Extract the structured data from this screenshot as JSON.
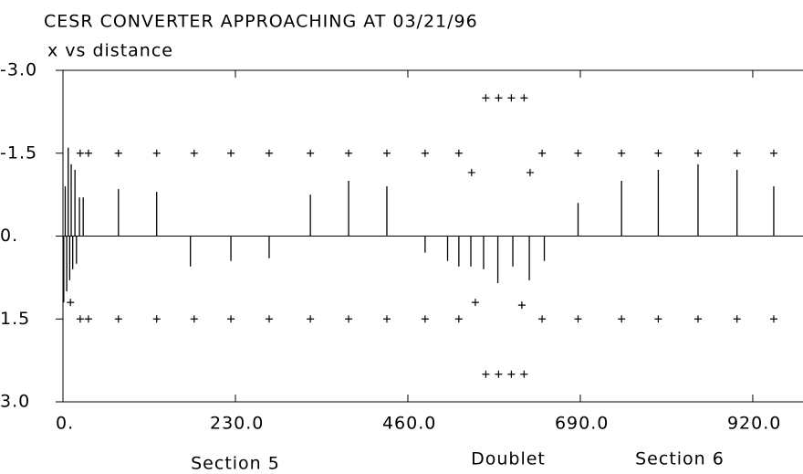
{
  "chart_data": {
    "type": "bar",
    "title": "CESR CONVERTER APPROACHING AT 03/21/96",
    "subtitle": "x vs distance",
    "annotations": [
      "Section 5",
      "Doublet",
      "Section 6"
    ],
    "color": "#000000",
    "inverted_y": true,
    "xlim": [
      0,
      987
    ],
    "ylim": [
      -3,
      3
    ],
    "xticks": [
      {
        "value": 0,
        "label": "0."
      },
      {
        "value": 230,
        "label": "230.0"
      },
      {
        "value": 460,
        "label": "460.0"
      },
      {
        "value": 690,
        "label": "690.0"
      },
      {
        "value": 920,
        "label": "920.0"
      }
    ],
    "yticks": [
      {
        "value": -3,
        "label": "-3.0"
      },
      {
        "value": -1.5,
        "label": "-1.5"
      },
      {
        "value": 0,
        "label": "0."
      },
      {
        "value": 1.5,
        "label": "1.5"
      },
      {
        "value": 3,
        "label": "3.0"
      }
    ],
    "x": [
      1,
      3,
      5,
      7,
      9,
      11,
      13,
      16,
      18,
      22,
      27,
      74,
      125,
      170,
      224,
      275,
      330,
      381,
      432,
      483,
      513,
      528,
      544,
      561,
      580,
      600,
      622,
      642,
      687,
      745,
      794,
      847,
      899,
      948
    ],
    "values": [
      1.2,
      -0.9,
      1.0,
      -1.6,
      0.8,
      -1.3,
      0.6,
      -1.2,
      0.5,
      -0.7,
      -0.7,
      -0.85,
      -0.8,
      0.55,
      0.45,
      0.4,
      -0.75,
      -1.0,
      -0.9,
      0.3,
      0.45,
      0.55,
      0.55,
      0.6,
      0.85,
      0.55,
      0.8,
      0.45,
      -0.6,
      -1.0,
      -1.2,
      -1.3,
      -1.2,
      -0.9
    ],
    "markers": {
      "x": [
        23,
        34,
        74,
        125,
        175,
        224,
        275,
        330,
        381,
        432,
        483,
        528,
        639,
        687,
        745,
        794,
        847,
        899,
        948,
        23,
        34,
        74,
        125,
        175,
        224,
        275,
        330,
        381,
        432,
        483,
        528,
        639,
        687,
        745,
        794,
        847,
        899,
        948,
        545,
        623,
        550,
        612,
        564,
        581,
        598,
        615,
        564,
        581,
        598,
        615,
        10
      ],
      "values": [
        -1.5,
        -1.5,
        -1.5,
        -1.5,
        -1.5,
        -1.5,
        -1.5,
        -1.5,
        -1.5,
        -1.5,
        -1.5,
        -1.5,
        -1.5,
        -1.5,
        -1.5,
        -1.5,
        -1.5,
        -1.5,
        -1.5,
        1.5,
        1.5,
        1.5,
        1.5,
        1.5,
        1.5,
        1.5,
        1.5,
        1.5,
        1.5,
        1.5,
        1.5,
        1.5,
        1.5,
        1.5,
        1.5,
        1.5,
        1.5,
        1.5,
        -1.15,
        -1.15,
        1.2,
        1.25,
        -2.5,
        -2.5,
        -2.5,
        -2.5,
        2.5,
        2.5,
        2.5,
        2.5,
        1.2
      ]
    }
  }
}
